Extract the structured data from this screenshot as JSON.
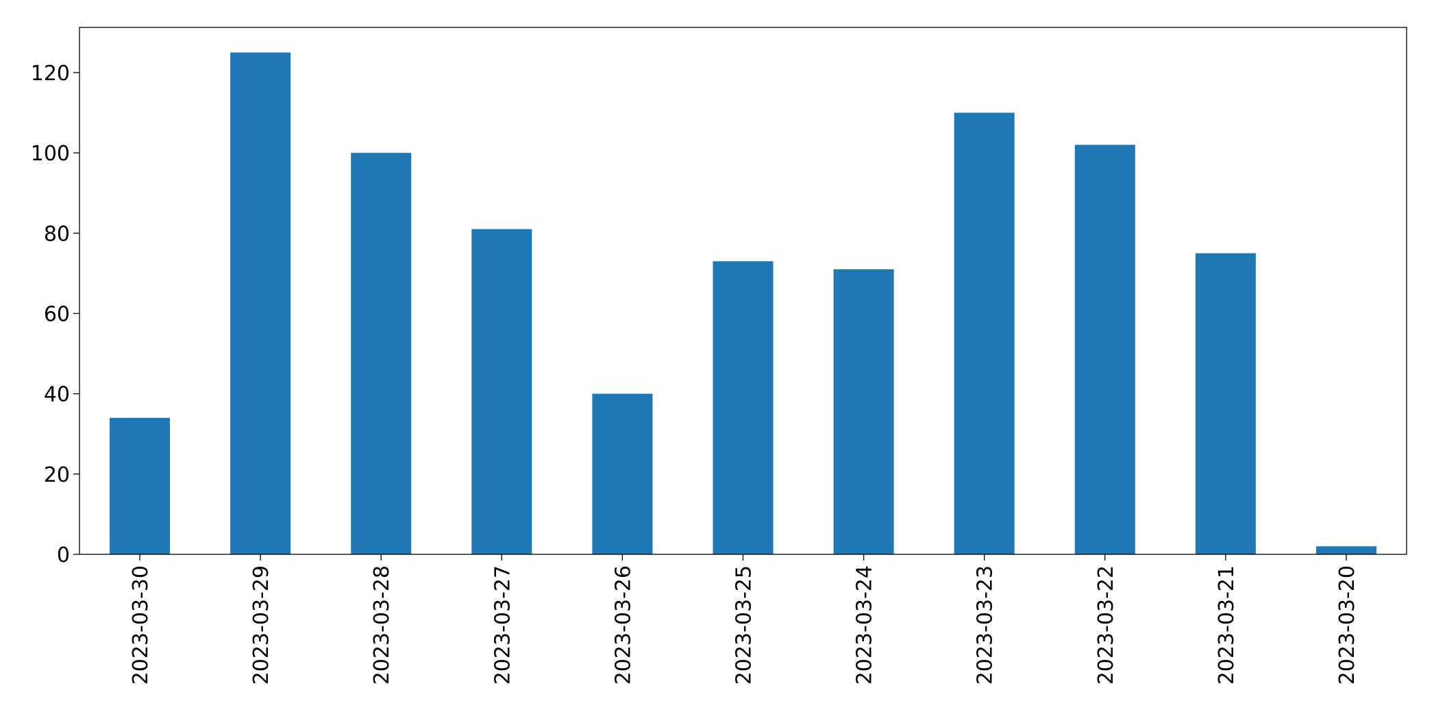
{
  "chart_data": {
    "type": "bar",
    "categories": [
      "2023-03-30",
      "2023-03-29",
      "2023-03-28",
      "2023-03-27",
      "2023-03-26",
      "2023-03-25",
      "2023-03-24",
      "2023-03-23",
      "2023-03-22",
      "2023-03-21",
      "2023-03-20"
    ],
    "values": [
      34,
      125,
      100,
      81,
      40,
      73,
      71,
      110,
      102,
      75,
      2
    ],
    "color": "#1f77b4",
    "ylim": [
      0,
      131.25
    ],
    "yticks": [
      0,
      20,
      40,
      60,
      80,
      100,
      120
    ],
    "grid": false
  }
}
